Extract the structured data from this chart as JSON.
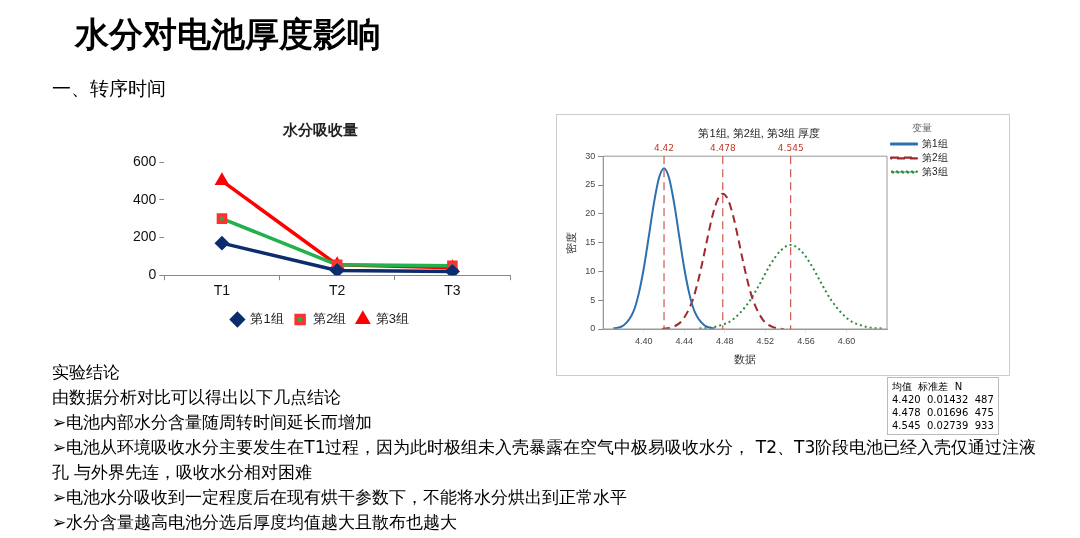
{
  "chart_data": [
    {
      "type": "other",
      "title": "水分对电池厚度影响",
      "subtitle": "一、转序时间"
    },
    {
      "type": "line",
      "title": "水分吸收量",
      "categories": [
        "T1",
        "T2",
        "T3"
      ],
      "ylim": [
        0,
        600
      ],
      "yticks": [
        0,
        200,
        400,
        600
      ],
      "legend": "bottom",
      "series": [
        {
          "name": "第1组",
          "color": "#0d2c6e",
          "marker": "diamond",
          "values": [
            170,
            25,
            20
          ]
        },
        {
          "name": "第2组",
          "color": "#22b14c",
          "marker": "square",
          "values": [
            300,
            55,
            50
          ]
        },
        {
          "name": "第3组",
          "color": "#ff0000",
          "marker": "triangle",
          "values": [
            500,
            55,
            40
          ]
        }
      ]
    },
    {
      "type": "line",
      "title": "第1组, 第2组, 第3组 厚度",
      "xlabel": "数据",
      "ylabel": "密度",
      "legend": "right",
      "legend_title": "变量",
      "marker": "none",
      "xlim": [
        4.36,
        4.64
      ],
      "ylim": [
        0,
        30
      ],
      "xticks": [
        {
          "value": 4.4,
          "label": "4.40"
        },
        4.44,
        4.48,
        4.52,
        4.56,
        {
          "value": 4.6,
          "label": "4.60"
        }
      ],
      "yticks": [
        0,
        5,
        10,
        15,
        20,
        25,
        30
      ],
      "ref_lines": [
        {
          "axis": "x",
          "value": 4.42,
          "label": "4.42",
          "color": "#c0392b",
          "line_style": "dashed"
        },
        {
          "axis": "x",
          "value": 4.478,
          "label": "4.478",
          "color": "#c0392b",
          "line_style": "dashed"
        },
        {
          "axis": "x",
          "value": 4.545,
          "label": "4.545",
          "color": "#c0392b",
          "line_style": "dashed"
        }
      ],
      "annotations": [
        "均值  标准差  N",
        "4.420  0.01432  487",
        "4.478  0.01696  475",
        "4.545  0.02739  933"
      ],
      "series": [
        {
          "name": "第1组",
          "color": "#2e6fad",
          "line_style": "solid",
          "x": [
            4.37,
            4.38,
            4.39,
            4.395,
            4.4,
            4.405,
            4.41,
            4.415,
            4.42,
            4.425,
            4.43,
            4.435,
            4.44,
            4.445,
            4.45,
            4.46,
            4.47
          ],
          "values": [
            0.1,
            0.6,
            3.1,
            6.1,
            10.5,
            16.1,
            21.8,
            26.2,
            27.9,
            26.2,
            21.8,
            16.1,
            10.5,
            6.1,
            3.1,
            0.6,
            0.1
          ]
        },
        {
          "name": "第2组",
          "color": "#a0282d",
          "line_style": "dashed",
          "x": [
            4.418,
            4.428,
            4.438,
            4.448,
            4.453,
            4.458,
            4.463,
            4.468,
            4.473,
            4.478,
            4.483,
            4.488,
            4.493,
            4.498,
            4.503,
            4.508,
            4.518,
            4.528,
            4.538
          ],
          "values": [
            0.0,
            0.3,
            1.5,
            4.9,
            7.9,
            11.7,
            15.9,
            19.8,
            22.5,
            23.5,
            22.5,
            19.8,
            15.9,
            11.7,
            7.9,
            4.9,
            1.5,
            0.3,
            0.0
          ]
        },
        {
          "name": "第3组",
          "color": "#2e8b3e",
          "line_style": "dotted",
          "x": [
            4.455,
            4.465,
            4.475,
            4.485,
            4.495,
            4.505,
            4.515,
            4.525,
            4.535,
            4.545,
            4.555,
            4.565,
            4.575,
            4.585,
            4.595,
            4.605,
            4.615,
            4.625,
            4.635
          ],
          "values": [
            0.1,
            0.2,
            0.6,
            1.3,
            2.8,
            5.0,
            8.0,
            11.2,
            13.6,
            14.6,
            13.6,
            11.2,
            8.0,
            5.0,
            2.8,
            1.3,
            0.6,
            0.2,
            0.1
          ]
        }
      ]
    },
    {
      "type": "other",
      "title": "实验结论",
      "annotations": [
        "由数据分析对比可以得出以下几点结论",
        "➢电池内部水分含量随周转时间延长而增加",
        "➢电池从环境吸收水分主要发生在T1过程，因为此时极组未入壳暴露在空气中极易吸收水分， T2、T3阶段电池已经入壳仅通过注液孔 与外界先连，吸收水分相对困难",
        "➢电池水分吸收到一定程度后在现有烘干参数下，不能将水分烘出到正常水平",
        "➢水分含量越高电池分选后厚度均值越大且散布也越大"
      ]
    }
  ]
}
